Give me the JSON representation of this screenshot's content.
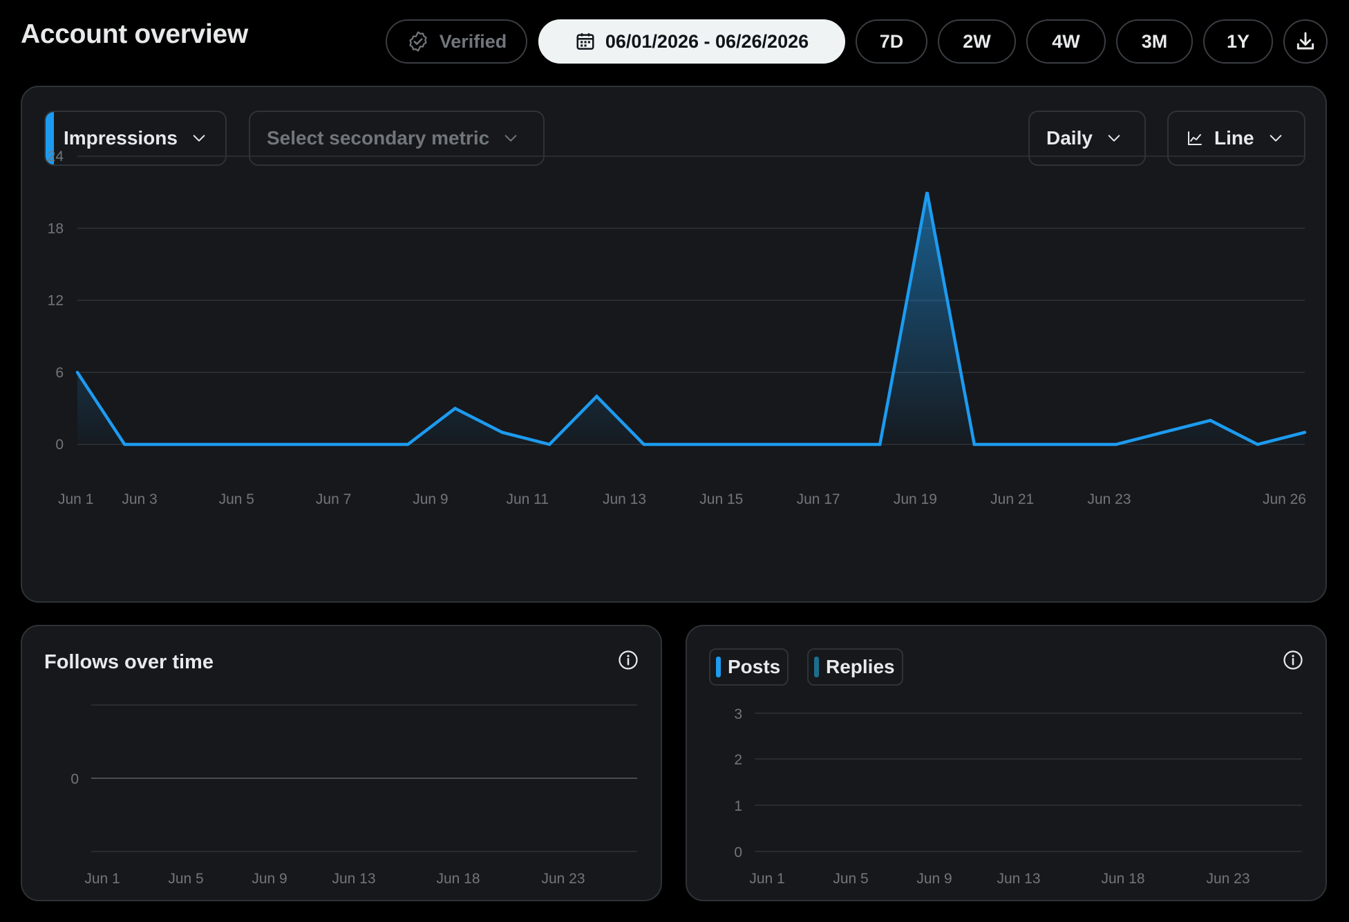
{
  "page": {
    "title": "Account overview"
  },
  "toolbar": {
    "verified_label": "Verified",
    "date_range": "06/01/2026 - 06/26/2026",
    "ranges": [
      "7D",
      "2W",
      "4W",
      "3M",
      "1Y"
    ],
    "download_icon": "download-icon",
    "calendar_icon": "calendar-icon",
    "verified_icon": "verified-badge-icon"
  },
  "main_chart": {
    "primary_metric": "Impressions",
    "secondary_metric_placeholder": "Select secondary metric",
    "interval": "Daily",
    "chart_type": "Line",
    "accent_color": "#1d9bf0"
  },
  "follows_card": {
    "title": "Follows over time",
    "info_icon": "info-icon"
  },
  "posts_card": {
    "legend": [
      {
        "label": "Posts",
        "color": "#1d9bf0"
      },
      {
        "label": "Replies",
        "color": "#1c6e8c"
      }
    ],
    "info_icon": "info-icon"
  },
  "chart_data": [
    {
      "type": "area",
      "series": [
        {
          "values": [
            6,
            0,
            0,
            0,
            0,
            0,
            0,
            0,
            3,
            1,
            0,
            4,
            0,
            0,
            0,
            0,
            0,
            0,
            21,
            0,
            0,
            0,
            0,
            1,
            2,
            0,
            1
          ]
        }
      ],
      "x_start": "Jun 1",
      "x_end": "Jun 26",
      "xtick_labels": [
        "Jun 1",
        "Jun 3",
        "Jun 5",
        "Jun 7",
        "Jun 9",
        "Jun 11",
        "Jun 13",
        "Jun 15",
        "Jun 17",
        "Jun 19",
        "Jun 21",
        "Jun 23",
        "Jun 26"
      ],
      "ytick_labels": [
        "0",
        "6",
        "12",
        "18",
        "24"
      ],
      "yticks": [
        0,
        6,
        12,
        18,
        24
      ],
      "ylim": [
        0,
        24
      ],
      "grid": true
    },
    {
      "type": "line",
      "series": [],
      "xtick_labels": [
        "Jun 1",
        "Jun 5",
        "Jun 9",
        "Jun 13",
        "Jun 18",
        "Jun 23"
      ],
      "ytick_labels": [
        "0"
      ],
      "grid": true
    },
    {
      "type": "bar",
      "series": [
        {
          "name": "Posts",
          "values": []
        },
        {
          "name": "Replies",
          "values": []
        }
      ],
      "xtick_labels": [
        "Jun 1",
        "Jun 5",
        "Jun 9",
        "Jun 13",
        "Jun 18",
        "Jun 23"
      ],
      "ytick_labels": [
        "0",
        "1",
        "2",
        "3"
      ],
      "yticks": [
        0,
        1,
        2,
        3
      ],
      "ylim": [
        0,
        3
      ],
      "grid": true
    }
  ]
}
